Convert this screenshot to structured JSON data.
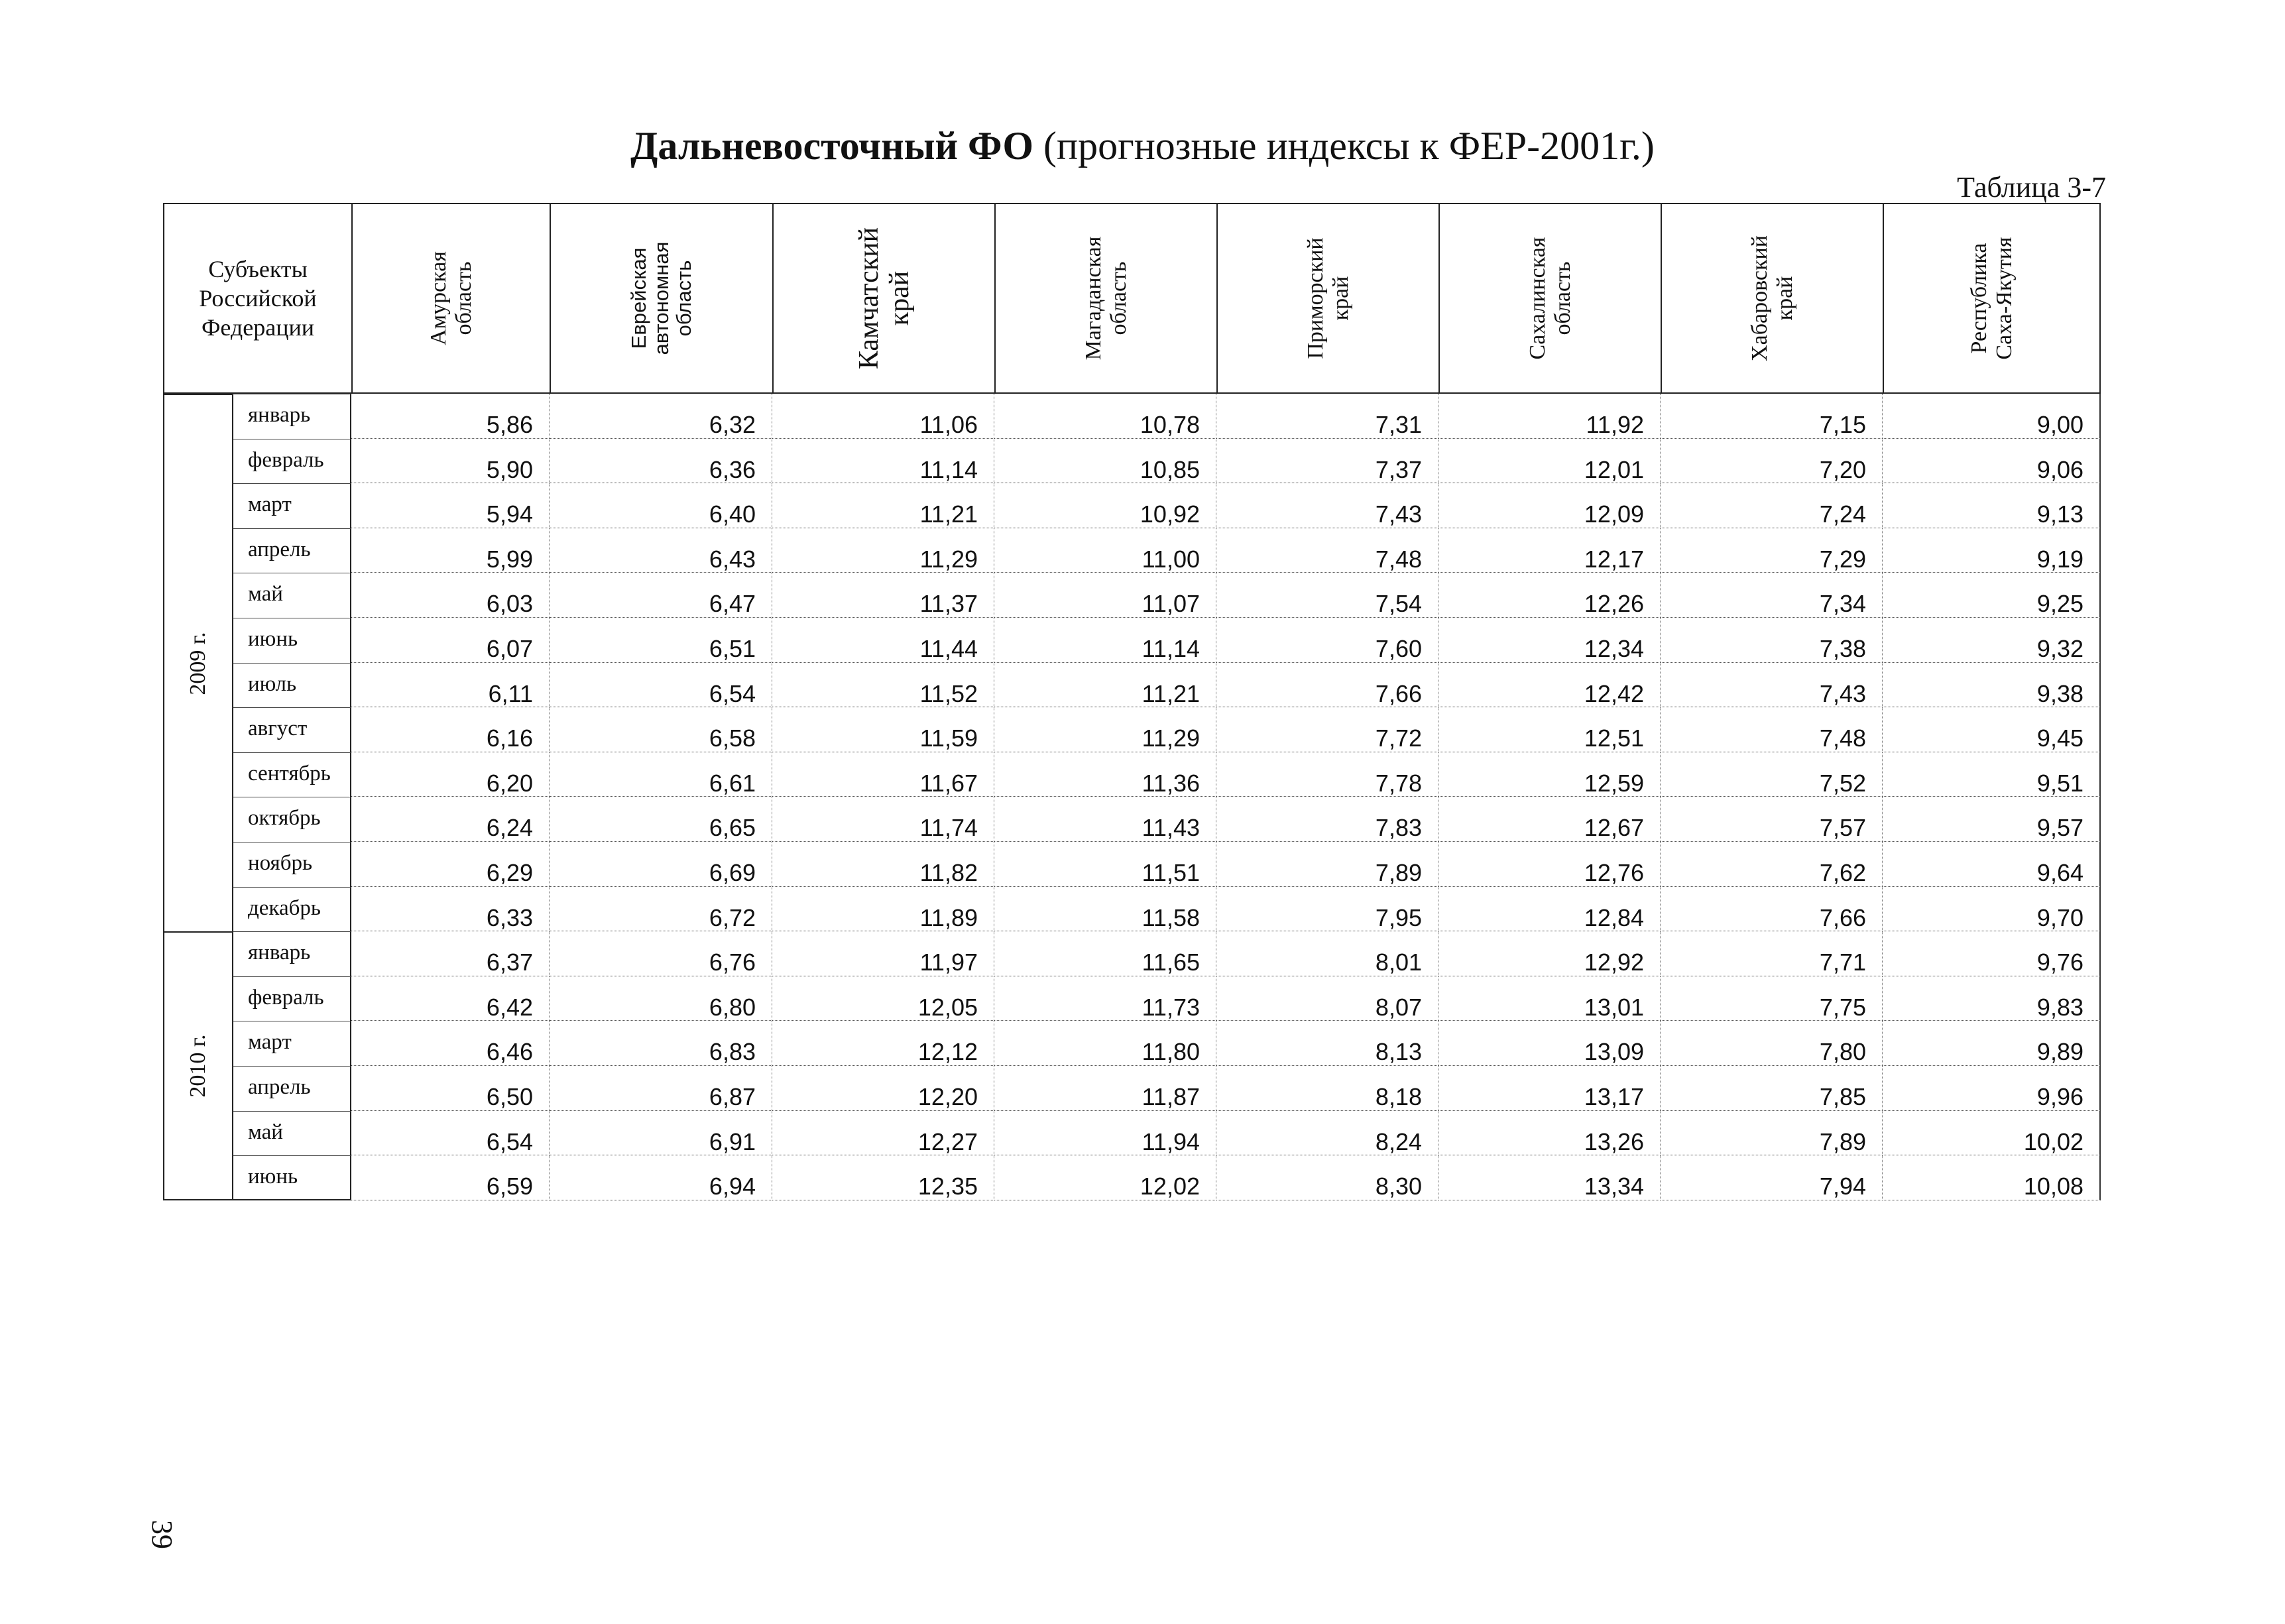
{
  "title_bold": "Дальневосточный ФО",
  "title_rest": " (прогнозные индексы к ФЕР-2001г.)",
  "table_number": "Таблица 3-7",
  "corner_header": "Субъекты Российской Федерации",
  "columns": [
    {
      "label": "Амурская область",
      "style": "serif"
    },
    {
      "label": "Еврейская автономная область",
      "style": "sans"
    },
    {
      "label": "Камчатский край",
      "style": "big"
    },
    {
      "label": "Магаданская область",
      "style": "serif"
    },
    {
      "label": "Приморский край",
      "style": "serif"
    },
    {
      "label": "Сахалинская область",
      "style": "serif"
    },
    {
      "label": "Хабаровский край",
      "style": "serif"
    },
    {
      "label": "Республика Саха-Якутия",
      "style": "serif"
    }
  ],
  "groups": [
    {
      "year": "2009 г.",
      "rows": [
        {
          "month": "январь",
          "values": [
            "5,86",
            "6,32",
            "11,06",
            "10,78",
            "7,31",
            "11,92",
            "7,15",
            "9,00"
          ]
        },
        {
          "month": "февраль",
          "values": [
            "5,90",
            "6,36",
            "11,14",
            "10,85",
            "7,37",
            "12,01",
            "7,20",
            "9,06"
          ]
        },
        {
          "month": "март",
          "values": [
            "5,94",
            "6,40",
            "11,21",
            "10,92",
            "7,43",
            "12,09",
            "7,24",
            "9,13"
          ]
        },
        {
          "month": "апрель",
          "values": [
            "5,99",
            "6,43",
            "11,29",
            "11,00",
            "7,48",
            "12,17",
            "7,29",
            "9,19"
          ]
        },
        {
          "month": "май",
          "values": [
            "6,03",
            "6,47",
            "11,37",
            "11,07",
            "7,54",
            "12,26",
            "7,34",
            "9,25"
          ]
        },
        {
          "month": "июнь",
          "values": [
            "6,07",
            "6,51",
            "11,44",
            "11,14",
            "7,60",
            "12,34",
            "7,38",
            "9,32"
          ]
        },
        {
          "month": "июль",
          "values": [
            "6,11",
            "6,54",
            "11,52",
            "11,21",
            "7,66",
            "12,42",
            "7,43",
            "9,38"
          ]
        },
        {
          "month": "август",
          "values": [
            "6,16",
            "6,58",
            "11,59",
            "11,29",
            "7,72",
            "12,51",
            "7,48",
            "9,45"
          ]
        },
        {
          "month": "сентябрь",
          "values": [
            "6,20",
            "6,61",
            "11,67",
            "11,36",
            "7,78",
            "12,59",
            "7,52",
            "9,51"
          ]
        },
        {
          "month": "октябрь",
          "values": [
            "6,24",
            "6,65",
            "11,74",
            "11,43",
            "7,83",
            "12,67",
            "7,57",
            "9,57"
          ]
        },
        {
          "month": "ноябрь",
          "values": [
            "6,29",
            "6,69",
            "11,82",
            "11,51",
            "7,89",
            "12,76",
            "7,62",
            "9,64"
          ]
        },
        {
          "month": "декабрь",
          "values": [
            "6,33",
            "6,72",
            "11,89",
            "11,58",
            "7,95",
            "12,84",
            "7,66",
            "9,70"
          ]
        }
      ]
    },
    {
      "year": "2010 г.",
      "rows": [
        {
          "month": "январь",
          "values": [
            "6,37",
            "6,76",
            "11,97",
            "11,65",
            "8,01",
            "12,92",
            "7,71",
            "9,76"
          ]
        },
        {
          "month": "февраль",
          "values": [
            "6,42",
            "6,80",
            "12,05",
            "11,73",
            "8,07",
            "13,01",
            "7,75",
            "9,83"
          ]
        },
        {
          "month": "март",
          "values": [
            "6,46",
            "6,83",
            "12,12",
            "11,80",
            "8,13",
            "13,09",
            "7,80",
            "9,89"
          ]
        },
        {
          "month": "апрель",
          "values": [
            "6,50",
            "6,87",
            "12,20",
            "11,87",
            "8,18",
            "13,17",
            "7,85",
            "9,96"
          ]
        },
        {
          "month": "май",
          "values": [
            "6,54",
            "6,91",
            "12,27",
            "11,94",
            "8,24",
            "13,26",
            "7,89",
            "10,02"
          ]
        },
        {
          "month": "июнь",
          "values": [
            "6,59",
            "6,94",
            "12,35",
            "12,02",
            "8,30",
            "13,34",
            "7,94",
            "10,08"
          ]
        }
      ]
    }
  ],
  "page_number": "39"
}
